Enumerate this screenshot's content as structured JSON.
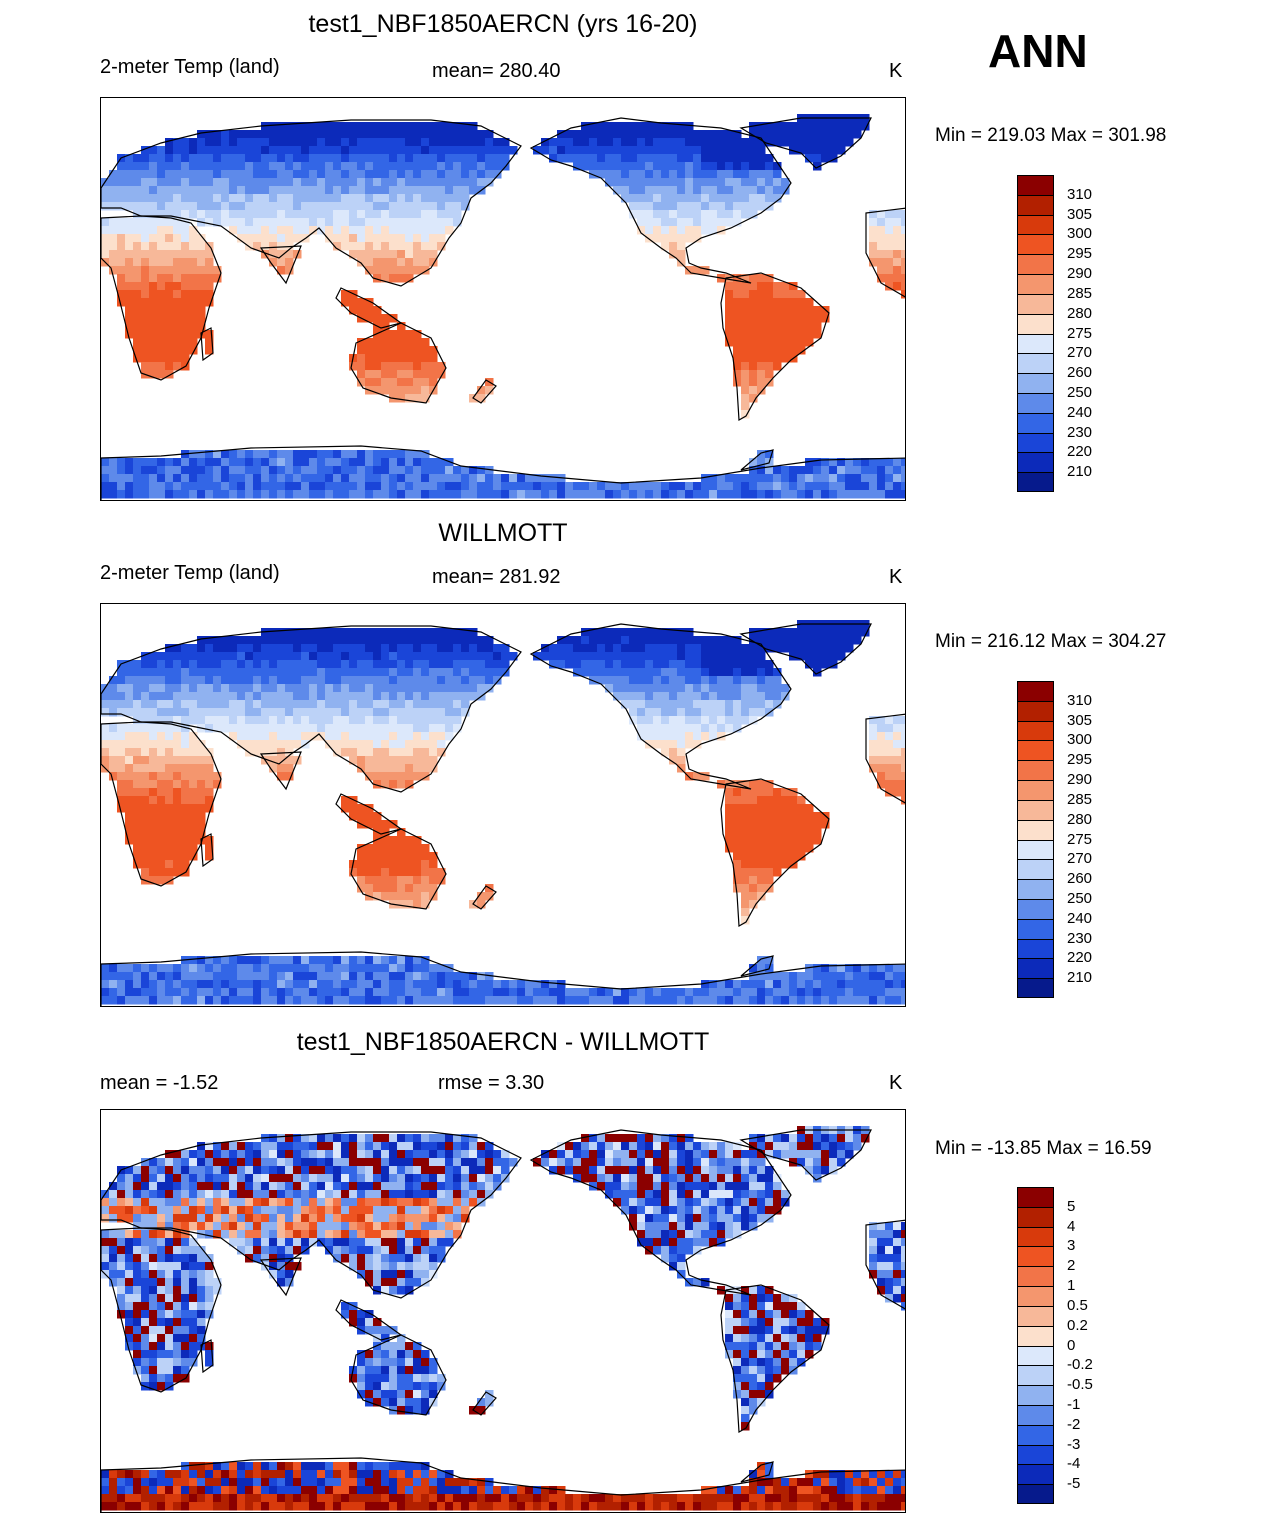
{
  "season": "ANN",
  "panels": [
    {
      "title": "test1_NBF1850AERCN (yrs 16-20)",
      "left_label": "2-meter Temp (land)",
      "center_label": "mean= 280.40",
      "units": "K",
      "minmax": "Min = 219.03 Max = 301.98",
      "kind": "temp",
      "colorbar": {
        "labels": [
          "310",
          "305",
          "300",
          "295",
          "290",
          "285",
          "280",
          "275",
          "270",
          "260",
          "250",
          "240",
          "230",
          "220",
          "210"
        ],
        "colors": [
          "#8b0000",
          "#b22000",
          "#d83a0c",
          "#ee5422",
          "#f27448",
          "#f4966e",
          "#f7b899",
          "#fce0cc",
          "#dce8fb",
          "#bcd2f7",
          "#90b2f0",
          "#5e8aea",
          "#3366e6",
          "#1a45d8",
          "#0c2aba",
          "#061a8c"
        ]
      }
    },
    {
      "title": "WILLMOTT",
      "left_label": "2-meter Temp (land)",
      "center_label": "mean= 281.92",
      "units": "K",
      "minmax": "Min = 216.12 Max = 304.27",
      "kind": "temp",
      "colorbar": {
        "labels": [
          "310",
          "305",
          "300",
          "295",
          "290",
          "285",
          "280",
          "275",
          "270",
          "260",
          "250",
          "240",
          "230",
          "220",
          "210"
        ],
        "colors": [
          "#8b0000",
          "#b22000",
          "#d83a0c",
          "#ee5422",
          "#f27448",
          "#f4966e",
          "#f7b899",
          "#fce0cc",
          "#dce8fb",
          "#bcd2f7",
          "#90b2f0",
          "#5e8aea",
          "#3366e6",
          "#1a45d8",
          "#0c2aba",
          "#061a8c"
        ]
      }
    },
    {
      "title": "test1_NBF1850AERCN - WILLMOTT",
      "left_label": "mean =  -1.52",
      "center_label": "rmse =   3.30",
      "units": "K",
      "minmax": "Min = -13.85 Max =  16.59",
      "kind": "diff",
      "colorbar": {
        "labels": [
          "5",
          "4",
          "3",
          "2",
          "1",
          "0.5",
          "0.2",
          "0",
          "-0.2",
          "-0.5",
          "-1",
          "-2",
          "-3",
          "-4",
          "-5"
        ],
        "colors": [
          "#8b0000",
          "#b22000",
          "#d83a0c",
          "#ee5422",
          "#f27448",
          "#f4966e",
          "#f7b899",
          "#fce0cc",
          "#dce8fb",
          "#bcd2f7",
          "#90b2f0",
          "#5e8aea",
          "#3366e6",
          "#1a45d8",
          "#0c2aba",
          "#061a8c"
        ]
      }
    }
  ]
}
